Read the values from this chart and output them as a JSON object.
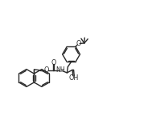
{
  "bg_color": "#ffffff",
  "line_color": "#2a2a2a",
  "line_width": 1.0,
  "figsize": [
    1.99,
    1.7
  ],
  "dpi": 100,
  "xlim": [
    -1,
    18
  ],
  "ylim": [
    -1,
    15
  ]
}
